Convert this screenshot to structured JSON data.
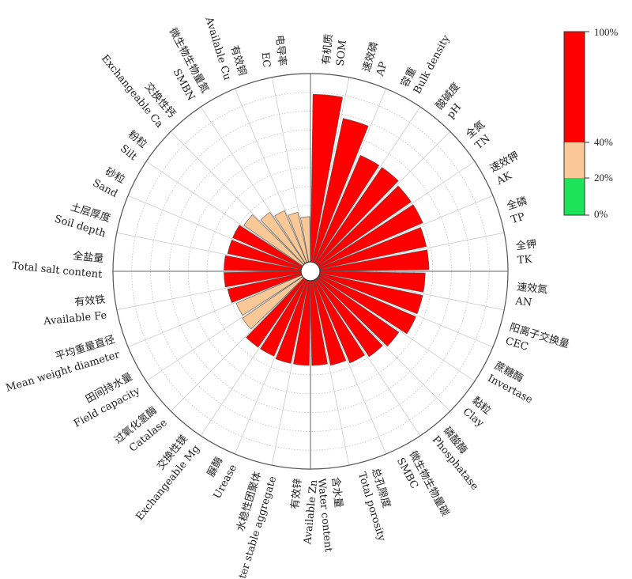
{
  "chart_data": {
    "type": "polar_bar",
    "title": "",
    "categories": [
      {
        "cn": "有机质",
        "en": "SOM",
        "value": 0.89
      },
      {
        "cn": "速效磷",
        "en": "AP",
        "value": 0.78
      },
      {
        "cn": "容重",
        "en": "Bulk density",
        "value": 0.62
      },
      {
        "cn": "酸碱度",
        "en": "pH",
        "value": 0.62
      },
      {
        "cn": "全氮",
        "en": "TN",
        "value": 0.6
      },
      {
        "cn": "速效钾",
        "en": "AK",
        "value": 0.6
      },
      {
        "cn": "全磷",
        "en": "TP",
        "value": 0.58
      },
      {
        "cn": "全钾",
        "en": "TK",
        "value": 0.58
      },
      {
        "cn": "速效氮",
        "en": "AN",
        "value": 0.56
      },
      {
        "cn": "阳离子交换量",
        "en": "CEC",
        "value": 0.56
      },
      {
        "cn": "蔗糖酶",
        "en": "Invertase",
        "value": 0.56
      },
      {
        "cn": "黏粒",
        "en": "Clay",
        "value": 0.52
      },
      {
        "cn": "磷酸酶",
        "en": "Phosphatase",
        "value": 0.5
      },
      {
        "cn": "微生物生物量碳",
        "en": "SMBC",
        "value": 0.48
      },
      {
        "cn": "总孔隙度",
        "en": "Total porosity",
        "value": 0.46
      },
      {
        "cn": "含水量",
        "en": "Water content",
        "value": 0.45
      },
      {
        "cn": "有效锌",
        "en": "Available Zn",
        "value": 0.45
      },
      {
        "cn": "水稳性团聚体",
        "en": "water stable aggregate",
        "value": 0.45
      },
      {
        "cn": "脲酶",
        "en": "Urease",
        "value": 0.44
      },
      {
        "cn": "交换性镁",
        "en": "Exchangeable Mg",
        "value": 0.44
      },
      {
        "cn": "过氧化氢酶",
        "en": "Catalase",
        "value": 0.39
      },
      {
        "cn": "田间持水量",
        "en": "Field capacity",
        "value": 0.38
      },
      {
        "cn": "平均重量直径",
        "en": "Mean weight diameter",
        "value": 0.4
      },
      {
        "cn": "有效铁",
        "en": "Available Fe",
        "value": 0.41
      },
      {
        "cn": "全盐量",
        "en": "Total salt content",
        "value": 0.41
      },
      {
        "cn": "土层厚度",
        "en": "Soil depth",
        "value": 0.4
      },
      {
        "cn": "砂粒",
        "en": "Sand",
        "value": 0.4
      },
      {
        "cn": "粉粒",
        "en": "Silt",
        "value": 0.38
      },
      {
        "cn": "交换性钙",
        "en": "Exchangeable Ca",
        "value": 0.33
      },
      {
        "cn": "微生物生物量氮",
        "en": "SMBN",
        "value": 0.3
      },
      {
        "cn": "有效铜",
        "en": "Available Cu",
        "value": 0.27
      },
      {
        "cn": "电导率",
        "en": "EC",
        "value": 0.24
      }
    ],
    "color_bands": [
      {
        "from": 0,
        "to": 0.2,
        "color": "#1de35a"
      },
      {
        "from": 0.2,
        "to": 0.4,
        "color": "#f9c896"
      },
      {
        "from": 0.4,
        "to": 1.0,
        "color": "#ff0000"
      }
    ],
    "colorbar_ticks": [
      "100%",
      "40%",
      "20%",
      "0%"
    ],
    "rlim": [
      0,
      1
    ],
    "grid": true
  }
}
